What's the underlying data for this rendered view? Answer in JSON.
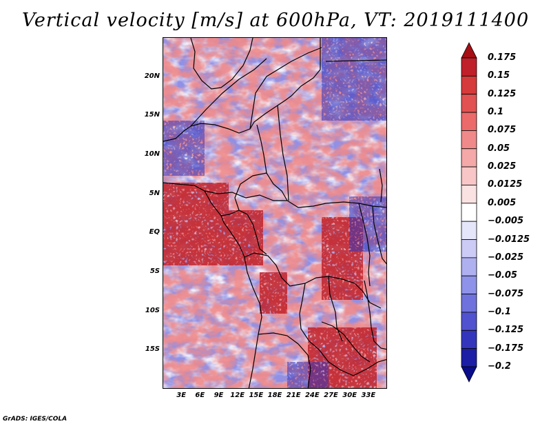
{
  "title": "Vertical velocity [m/s] at 600hPa, VT: 2019111400",
  "footer": "GrADS: IGES/COLA",
  "map": {
    "lon_range": [
      0,
      36
    ],
    "lat_range": [
      -20,
      25
    ],
    "lat_ticks": [
      {
        "value": 20,
        "label": "20N"
      },
      {
        "value": 15,
        "label": "15N"
      },
      {
        "value": 10,
        "label": "10N"
      },
      {
        "value": 5,
        "label": "5N"
      },
      {
        "value": 0,
        "label": "EQ"
      },
      {
        "value": -5,
        "label": "5S"
      },
      {
        "value": -10,
        "label": "10S"
      },
      {
        "value": -15,
        "label": "15S"
      }
    ],
    "lon_ticks": [
      {
        "value": 3,
        "label": "3E"
      },
      {
        "value": 6,
        "label": "6E"
      },
      {
        "value": 9,
        "label": "9E"
      },
      {
        "value": 12,
        "label": "12E"
      },
      {
        "value": 15,
        "label": "15E"
      },
      {
        "value": 18,
        "label": "18E"
      },
      {
        "value": 21,
        "label": "21E"
      },
      {
        "value": 24,
        "label": "24E"
      },
      {
        "value": 27,
        "label": "27E"
      },
      {
        "value": 30,
        "label": "30E"
      },
      {
        "value": 33,
        "label": "33E"
      }
    ]
  },
  "colorbar": {
    "labels": [
      "0.175",
      "0.15",
      "0.125",
      "0.1",
      "0.075",
      "0.05",
      "0.025",
      "0.0125",
      "0.005",
      "−0.005",
      "−0.0125",
      "−0.025",
      "−0.05",
      "−0.075",
      "−0.1",
      "−0.125",
      "−0.175",
      "−0.2"
    ],
    "colors": [
      "#a50f15",
      "#c0202a",
      "#d73a3a",
      "#e25252",
      "#ec6a6a",
      "#f08a8a",
      "#f4a8a8",
      "#f8c6c6",
      "#fbe2e2",
      "#ffffff",
      "#e6e6fb",
      "#cbcbf5",
      "#aeb0ef",
      "#8e92e8",
      "#6f72dd",
      "#5052cf",
      "#3336bd",
      "#1c1ea6",
      "#0a0c8a"
    ]
  }
}
